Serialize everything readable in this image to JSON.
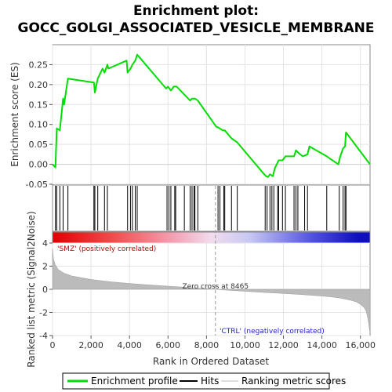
{
  "chart_data": {
    "type": "line",
    "title_line1": "Enrichment plot:",
    "title_line2": "GOCC_GOLGI_ASSOCIATED_VESICLE_MEMBRANE",
    "es_panel": {
      "ylabel": "Enrichment score (ES)",
      "ylim": [
        -0.05,
        0.3
      ],
      "yticks": [
        -0.05,
        0.0,
        0.05,
        0.1,
        0.15,
        0.2,
        0.25
      ],
      "ytick_labels": [
        "-0.05",
        "0.00",
        "0.05",
        "0.10",
        "0.15",
        "0.20",
        "0.25"
      ],
      "line_color": "#00dd00",
      "series": [
        {
          "name": "Enrichment profile",
          "x": [
            0,
            150,
            220,
            380,
            550,
            600,
            800,
            2150,
            2200,
            2350,
            2600,
            2700,
            2850,
            2900,
            3850,
            3900,
            4050,
            4150,
            4300,
            4400,
            5900,
            6000,
            6150,
            6300,
            6450,
            6850,
            7150,
            7250,
            7400,
            7550,
            8500,
            8700,
            8850,
            8950,
            9300,
            9600,
            11000,
            11100,
            11200,
            11300,
            11450,
            11550,
            11650,
            11750,
            11950,
            12100,
            12550,
            12650,
            12750,
            13000,
            13250,
            13350,
            14250,
            14850,
            14950,
            15100,
            15200,
            15250,
            16500
          ],
          "y": [
            0.0,
            -0.008,
            0.09,
            0.085,
            0.165,
            0.15,
            0.215,
            0.205,
            0.18,
            0.215,
            0.24,
            0.23,
            0.25,
            0.24,
            0.26,
            0.23,
            0.24,
            0.25,
            0.26,
            0.275,
            0.19,
            0.195,
            0.185,
            0.195,
            0.195,
            0.175,
            0.16,
            0.165,
            0.165,
            0.16,
            0.095,
            0.09,
            0.085,
            0.085,
            0.065,
            0.055,
            -0.025,
            -0.03,
            -0.032,
            -0.025,
            -0.03,
            -0.01,
            0.0,
            0.01,
            0.01,
            0.02,
            0.02,
            0.035,
            0.03,
            0.02,
            0.025,
            0.045,
            0.02,
            0.0,
            0.02,
            0.04,
            0.045,
            0.08,
            0.0
          ]
        }
      ]
    },
    "hits": [
      150,
      220,
      380,
      550,
      800,
      2150,
      2200,
      2350,
      2700,
      2850,
      3900,
      4050,
      4150,
      4300,
      4400,
      5950,
      6050,
      6150,
      6350,
      6400,
      6850,
      7150,
      7250,
      7350,
      7400,
      7550,
      8600,
      8700,
      8900,
      8950,
      9300,
      9600,
      11050,
      11150,
      11300,
      11400,
      11500,
      11700,
      11750,
      11950,
      12100,
      12550,
      12650,
      12750,
      13100,
      13250,
      14250,
      14900,
      15100,
      15200,
      15250
    ],
    "rank_panel": {
      "ylabel": "Ranked list metric (Signal2Noise)",
      "ylim": [
        -4,
        4
      ],
      "yticks": [
        -4,
        -2,
        0,
        2,
        4
      ],
      "ytick_labels": [
        "-4",
        "-2",
        "0",
        "2",
        "4"
      ],
      "fill_color": "#bbbbbb",
      "series": [
        {
          "name": "Ranking metric scores",
          "x": [
            0,
            50,
            150,
            300,
            600,
            1000,
            2000,
            3000,
            4000,
            5000,
            6000,
            7000,
            8000,
            8465,
            9000,
            10000,
            11000,
            12000,
            13000,
            14000,
            14500,
            15000,
            15500,
            15800,
            16000,
            16200,
            16300,
            16400,
            16500
          ],
          "y": [
            3.5,
            2.6,
            2.1,
            1.7,
            1.4,
            1.15,
            0.85,
            0.65,
            0.5,
            0.38,
            0.27,
            0.16,
            0.05,
            0.0,
            -0.07,
            -0.17,
            -0.27,
            -0.36,
            -0.46,
            -0.58,
            -0.66,
            -0.77,
            -0.95,
            -1.1,
            -1.3,
            -1.6,
            -1.9,
            -2.6,
            -3.8
          ]
        }
      ],
      "zero_cross_label": "Zero cross at 8465",
      "zero_cross": 8465,
      "pos_label": "'SMZ' (positively correlated)",
      "neg_label": "'CTRL' (negatively correlated)"
    },
    "xlabel": "Rank in Ordered Dataset",
    "xlim": [
      0,
      16500
    ],
    "xticks": [
      0,
      2000,
      4000,
      6000,
      8000,
      10000,
      12000,
      14000,
      16000
    ],
    "xtick_labels": [
      "0",
      "2,000",
      "4,000",
      "6,000",
      "8,000",
      "10,000",
      "12,000",
      "14,000",
      "16,000"
    ],
    "legend": [
      {
        "label": "Enrichment profile",
        "color": "#00dd00"
      },
      {
        "label": "Hits",
        "color": "#000000"
      },
      {
        "label": "Ranking metric scores",
        "color": "#dddddd"
      }
    ]
  }
}
